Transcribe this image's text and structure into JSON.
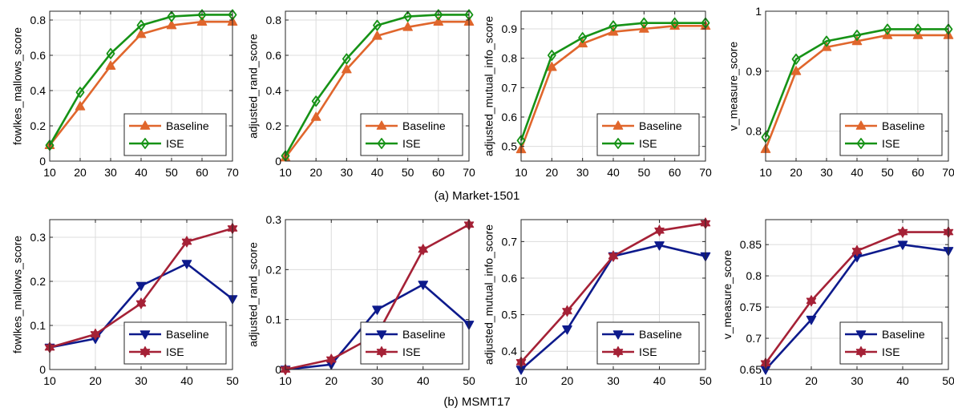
{
  "captions": [
    "(a) Market-1501",
    "(b) MSMT17"
  ],
  "styles": {
    "market_baseline": {
      "color": "#e0662c",
      "marker": "triangle-up"
    },
    "market_ise": {
      "color": "#169216",
      "marker": "diamond"
    },
    "msmt_baseline": {
      "color": "#0d1a8c",
      "marker": "triangle-down"
    },
    "msmt_ise": {
      "color": "#a52136",
      "marker": "hexagram"
    }
  },
  "chart_data": [
    {
      "type": "line",
      "group": "Market-1501",
      "ylabel": "fowlkes_mallows_score",
      "x": [
        10,
        20,
        30,
        40,
        50,
        60,
        70
      ],
      "xlim": [
        10,
        70
      ],
      "xticks": [
        "10",
        "20",
        "30",
        "40",
        "50",
        "60",
        "70"
      ],
      "ylim": [
        0,
        0.85
      ],
      "yticks": [
        "0",
        "0.2",
        "0.4",
        "0.6",
        "0.8"
      ],
      "grid": true,
      "legend": "bottom-right",
      "series": [
        {
          "name": "Baseline",
          "style": "market_baseline",
          "values": [
            0.09,
            0.31,
            0.54,
            0.72,
            0.77,
            0.79,
            0.79
          ]
        },
        {
          "name": "ISE",
          "style": "market_ise",
          "values": [
            0.09,
            0.39,
            0.61,
            0.77,
            0.82,
            0.83,
            0.83
          ]
        }
      ]
    },
    {
      "type": "line",
      "group": "Market-1501",
      "ylabel": "adjusted_rand_score",
      "x": [
        10,
        20,
        30,
        40,
        50,
        60,
        70
      ],
      "xlim": [
        10,
        70
      ],
      "xticks": [
        "10",
        "20",
        "30",
        "40",
        "50",
        "60",
        "70"
      ],
      "ylim": [
        0,
        0.85
      ],
      "yticks": [
        "0",
        "0.2",
        "0.4",
        "0.6",
        "0.8"
      ],
      "grid": true,
      "legend": "bottom-right",
      "series": [
        {
          "name": "Baseline",
          "style": "market_baseline",
          "values": [
            0.02,
            0.25,
            0.52,
            0.71,
            0.76,
            0.79,
            0.79
          ]
        },
        {
          "name": "ISE",
          "style": "market_ise",
          "values": [
            0.03,
            0.34,
            0.58,
            0.77,
            0.82,
            0.83,
            0.83
          ]
        }
      ]
    },
    {
      "type": "line",
      "group": "Market-1501",
      "ylabel": "adjusted_mutual_info_score",
      "x": [
        10,
        20,
        30,
        40,
        50,
        60,
        70
      ],
      "xlim": [
        10,
        70
      ],
      "xticks": [
        "10",
        "20",
        "30",
        "40",
        "50",
        "60",
        "70"
      ],
      "ylim": [
        0.45,
        0.96
      ],
      "yticks": [
        "0.5",
        "0.6",
        "0.7",
        "0.8",
        "0.9"
      ],
      "grid": true,
      "legend": "bottom-right",
      "series": [
        {
          "name": "Baseline",
          "style": "market_baseline",
          "values": [
            0.49,
            0.77,
            0.85,
            0.89,
            0.9,
            0.91,
            0.91
          ]
        },
        {
          "name": "ISE",
          "style": "market_ise",
          "values": [
            0.52,
            0.81,
            0.87,
            0.91,
            0.92,
            0.92,
            0.92
          ]
        }
      ]
    },
    {
      "type": "line",
      "group": "Market-1501",
      "ylabel": "v_measure_score",
      "x": [
        10,
        20,
        30,
        40,
        50,
        60,
        70
      ],
      "xlim": [
        10,
        70
      ],
      "xticks": [
        "10",
        "20",
        "30",
        "40",
        "50",
        "60",
        "70"
      ],
      "ylim": [
        0.75,
        1.0
      ],
      "yticks": [
        "0.8",
        "0.9",
        "1"
      ],
      "grid": true,
      "legend": "bottom-right",
      "series": [
        {
          "name": "Baseline",
          "style": "market_baseline",
          "values": [
            0.77,
            0.9,
            0.94,
            0.95,
            0.96,
            0.96,
            0.96
          ]
        },
        {
          "name": "ISE",
          "style": "market_ise",
          "values": [
            0.79,
            0.92,
            0.95,
            0.96,
            0.97,
            0.97,
            0.97
          ]
        }
      ]
    },
    {
      "type": "line",
      "group": "MSMT17",
      "ylabel": "fowlkes_mallows_score",
      "x": [
        10,
        20,
        30,
        40,
        50
      ],
      "xlim": [
        10,
        50
      ],
      "xticks": [
        "10",
        "20",
        "30",
        "40",
        "50"
      ],
      "ylim": [
        0,
        0.34
      ],
      "yticks": [
        "0",
        "0.1",
        "0.2",
        "0.3"
      ],
      "grid": true,
      "legend": "bottom-right",
      "series": [
        {
          "name": "Baseline",
          "style": "msmt_baseline",
          "values": [
            0.05,
            0.07,
            0.19,
            0.24,
            0.16
          ]
        },
        {
          "name": "ISE",
          "style": "msmt_ise",
          "values": [
            0.05,
            0.08,
            0.15,
            0.29,
            0.32
          ]
        }
      ]
    },
    {
      "type": "line",
      "group": "MSMT17",
      "ylabel": "adjusted_rand_score",
      "x": [
        10,
        20,
        30,
        40,
        50
      ],
      "xlim": [
        10,
        50
      ],
      "xticks": [
        "10",
        "20",
        "30",
        "40",
        "50"
      ],
      "ylim": [
        0,
        0.3
      ],
      "yticks": [
        "0",
        "0.1",
        "0.2",
        "0.3"
      ],
      "grid": true,
      "legend": "bottom-right",
      "series": [
        {
          "name": "Baseline",
          "style": "msmt_baseline",
          "values": [
            0.0,
            0.01,
            0.12,
            0.17,
            0.09
          ]
        },
        {
          "name": "ISE",
          "style": "msmt_ise",
          "values": [
            0.0,
            0.02,
            0.07,
            0.24,
            0.29
          ]
        }
      ]
    },
    {
      "type": "line",
      "group": "MSMT17",
      "ylabel": "adjusted_mutual_info_score",
      "x": [
        10,
        20,
        30,
        40,
        50
      ],
      "xlim": [
        10,
        50
      ],
      "xticks": [
        "10",
        "20",
        "30",
        "40",
        "50"
      ],
      "ylim": [
        0.35,
        0.76
      ],
      "yticks": [
        "0.4",
        "0.5",
        "0.6",
        "0.7"
      ],
      "grid": true,
      "legend": "bottom-right",
      "series": [
        {
          "name": "Baseline",
          "style": "msmt_baseline",
          "values": [
            0.35,
            0.46,
            0.66,
            0.69,
            0.66
          ]
        },
        {
          "name": "ISE",
          "style": "msmt_ise",
          "values": [
            0.37,
            0.51,
            0.66,
            0.73,
            0.75
          ]
        }
      ]
    },
    {
      "type": "line",
      "group": "MSMT17",
      "ylabel": "v_measure_score",
      "x": [
        10,
        20,
        30,
        40,
        50
      ],
      "xlim": [
        10,
        50
      ],
      "xticks": [
        "10",
        "20",
        "30",
        "40",
        "50"
      ],
      "ylim": [
        0.65,
        0.89
      ],
      "yticks": [
        "0.65",
        "0.7",
        "0.75",
        "0.8",
        "0.85"
      ],
      "grid": true,
      "legend": "bottom-right",
      "series": [
        {
          "name": "Baseline",
          "style": "msmt_baseline",
          "values": [
            0.65,
            0.73,
            0.83,
            0.85,
            0.84
          ]
        },
        {
          "name": "ISE",
          "style": "msmt_ise",
          "values": [
            0.66,
            0.76,
            0.84,
            0.87,
            0.87
          ]
        }
      ]
    }
  ]
}
